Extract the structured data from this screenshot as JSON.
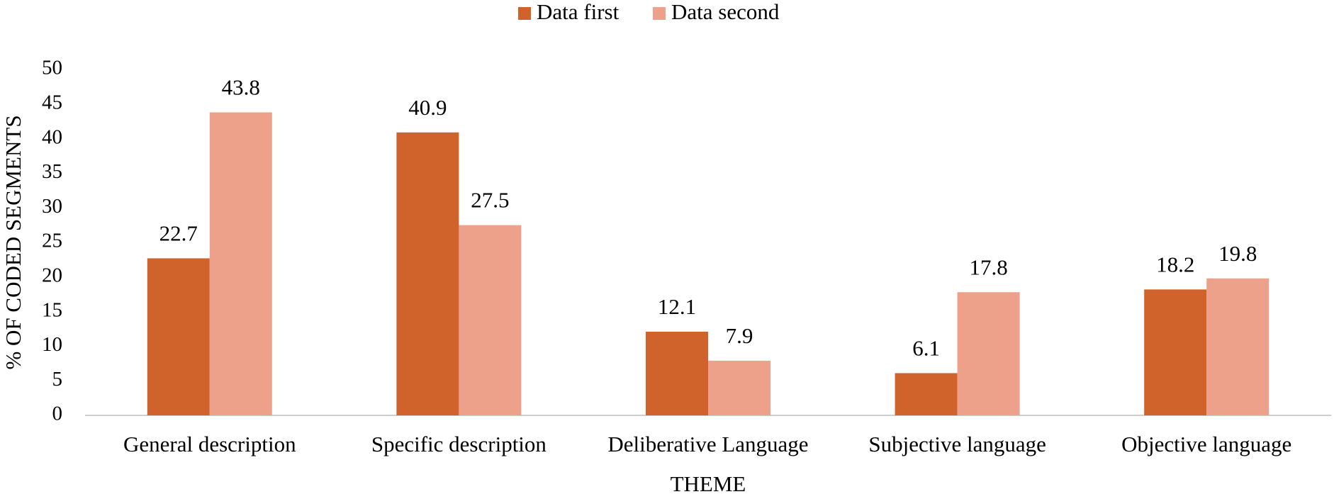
{
  "chart_data": {
    "type": "bar",
    "x_label": "THEME",
    "y_label": "% OF CODED SEGMENTS",
    "categories": [
      "General description",
      "Specific description",
      "Deliberative Language",
      "Subjective language",
      "Objective language"
    ],
    "series": [
      {
        "name": "Data first",
        "color": "#d0622b",
        "values": [
          22.7,
          40.9,
          12.1,
          6.1,
          18.2
        ]
      },
      {
        "name": "Data second",
        "color": "#eda08a",
        "values": [
          43.8,
          27.5,
          7.9,
          17.8,
          19.8
        ]
      }
    ],
    "ylim": [
      0,
      50
    ],
    "yticks": [
      0,
      5,
      10,
      15,
      20,
      25,
      30,
      35,
      40,
      45,
      50
    ],
    "legend": "top",
    "grid": false
  }
}
